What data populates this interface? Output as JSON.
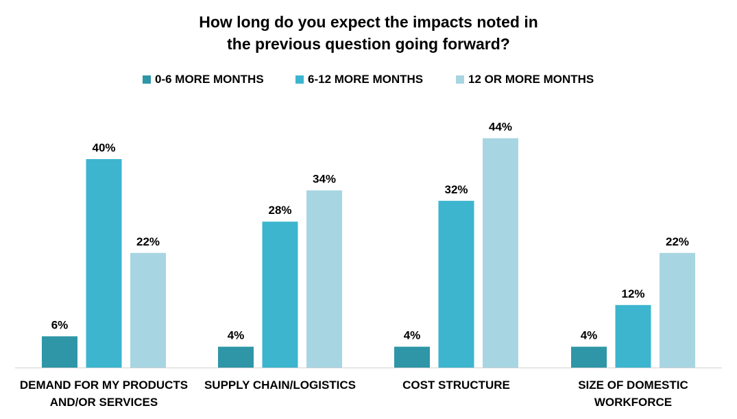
{
  "chart_data": {
    "type": "bar",
    "title_lines": [
      "How long do you expect the impacts noted in",
      "the previous question going forward?"
    ],
    "categories": [
      [
        "DEMAND FOR MY PRODUCTS",
        "AND/OR SERVICES"
      ],
      [
        "SUPPLY CHAIN/LOGISTICS"
      ],
      [
        "COST STRUCTURE"
      ],
      [
        "SIZE OF DOMESTIC",
        "WORKFORCE"
      ]
    ],
    "series": [
      {
        "name": "0-6 MORE MONTHS",
        "color": "#2e96a6",
        "values": [
          6,
          4,
          4,
          4
        ]
      },
      {
        "name": "6-12 MORE MONTHS",
        "color": "#3db5cf",
        "values": [
          40,
          28,
          32,
          12
        ]
      },
      {
        "name": "12 OR MORE MONTHS",
        "color": "#a8d5e2",
        "values": [
          22,
          34,
          44,
          22
        ]
      }
    ],
    "value_suffix": "%",
    "xlabel": "",
    "ylabel": "",
    "ylim": [
      0,
      44
    ],
    "grid": false,
    "legend_position": "top-center"
  }
}
